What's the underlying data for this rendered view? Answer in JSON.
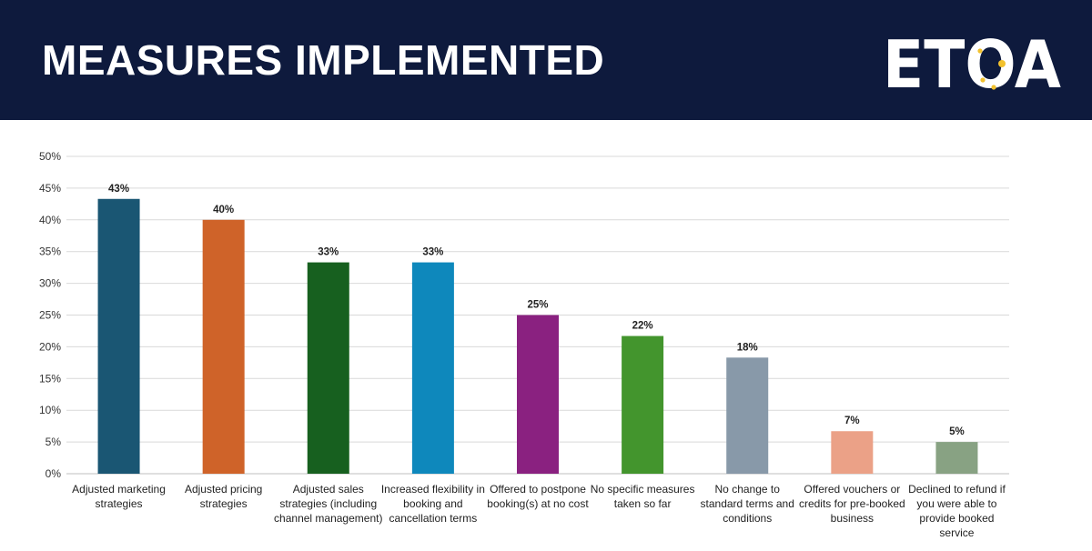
{
  "header": {
    "title": "MEASURES IMPLEMENTED",
    "logo_text": "ETOA",
    "background": "#0e1a3d"
  },
  "chart_data": {
    "type": "bar",
    "title": "",
    "xlabel": "",
    "ylabel": "",
    "ylim": [
      0,
      0.5
    ],
    "y_ticks": [
      "0%",
      "5%",
      "10%",
      "15%",
      "20%",
      "25%",
      "30%",
      "35%",
      "40%",
      "45%",
      "50%"
    ],
    "grid": true,
    "legend": "none",
    "categories": [
      "Adjusted marketing strategies",
      "Adjusted pricing strategies",
      "Adjusted sales strategies (including channel management)",
      "Increased flexibility in booking and cancellation terms",
      "Offered to postpone booking(s) at no cost",
      "No specific measures taken so far",
      "No change to standard terms and conditions",
      "Offered vouchers or credits for pre-booked business",
      "Declined to refund if you were able to provide booked service"
    ],
    "values": [
      0.433,
      0.4,
      0.333,
      0.333,
      0.25,
      0.217,
      0.183,
      0.067,
      0.05
    ],
    "data_labels": [
      "43%",
      "40%",
      "33%",
      "33%",
      "25%",
      "22%",
      "18%",
      "7%",
      "5%"
    ],
    "colors": [
      "#1a5673",
      "#cf6329",
      "#17601f",
      "#0e88bc",
      "#8a2180",
      "#43952d",
      "#8899a9",
      "#eba187",
      "#88a283"
    ]
  }
}
